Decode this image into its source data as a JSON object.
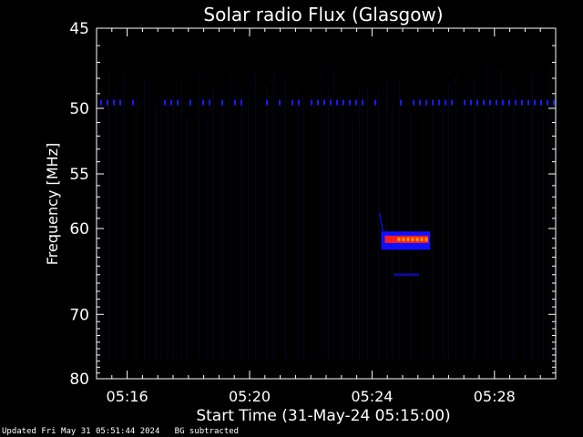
{
  "chart_data": {
    "type": "heatmap",
    "title": "Solar radio Flux (Glasgow)",
    "xlabel": "Start Time (31-May-24 05:15:00)",
    "ylabel": "Frequency [MHz]",
    "x_start": "05:15:00",
    "x_range_minutes": [
      0,
      15
    ],
    "x_tick_labels": [
      "05:16",
      "05:20",
      "05:24",
      "05:28"
    ],
    "x_tick_minutes": [
      1,
      5,
      9,
      13
    ],
    "ylim": [
      45,
      80
    ],
    "y_scale": "reciprocal",
    "y_tick_labels": [
      "45",
      "50",
      "55",
      "60",
      "70",
      "80"
    ],
    "y_ticks": [
      45,
      50,
      55,
      60,
      70,
      80
    ],
    "background_color": "#000000",
    "interference_line": {
      "frequency_mhz": 49.6,
      "color": "#1a1aff"
    },
    "burst": {
      "time_start_minutes": 9.3,
      "time_end_minutes": 10.9,
      "freq_low_mhz": 62.2,
      "freq_high_mhz": 60.3,
      "peak_freq_mhz": 61.1,
      "precursor_start_freq_mhz": 58.5,
      "echo_freq_mhz": 65.0,
      "colors": [
        "#1010ff",
        "#ff2020",
        "#ffa000"
      ]
    }
  },
  "footer": {
    "updated": "Updated Fri May 31 05:51:44 2024",
    "note": "BG subtracted"
  }
}
